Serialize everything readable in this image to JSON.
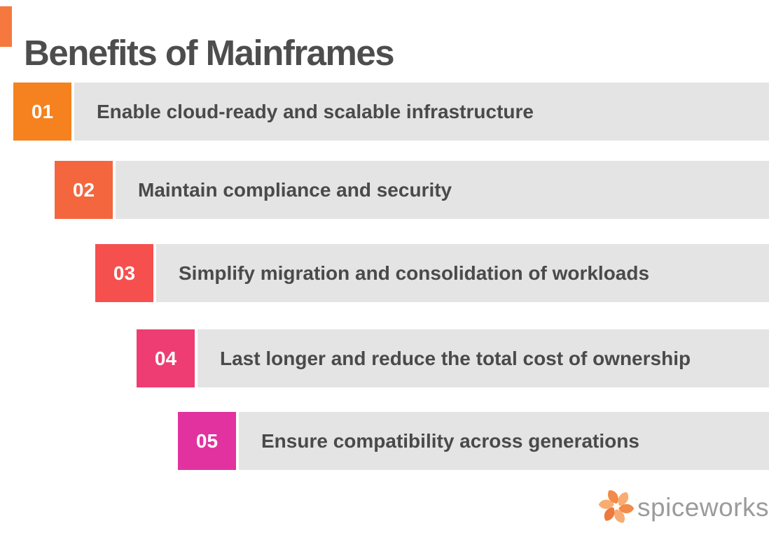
{
  "title": "Benefits of Mainframes",
  "accent_color": "#F5793F",
  "items": [
    {
      "number": "01",
      "label": "Enable cloud-ready and scalable infrastructure",
      "badge_color": "#F5821F"
    },
    {
      "number": "02",
      "label": "Maintain compliance and security",
      "badge_color": "#F4663E"
    },
    {
      "number": "03",
      "label": "Simplify migration and consolidation of workloads",
      "badge_color": "#F5504E"
    },
    {
      "number": "04",
      "label": "Last longer and reduce the total cost of ownership",
      "badge_color": "#EE3D72"
    },
    {
      "number": "05",
      "label": "Ensure compatibility across generations",
      "badge_color": "#E2329F"
    }
  ],
  "colors": {
    "bar_background": "#E4E4E4",
    "row_text": "#4A4A4A",
    "title_text": "#4D4D4D",
    "logo_text_color": "#9B9B9B",
    "logo_orange": "#F28A49",
    "logo_peach": "#F9AC72"
  },
  "logo": {
    "text": "spiceworks",
    "icon": "spiceworks-pinwheel-icon"
  }
}
